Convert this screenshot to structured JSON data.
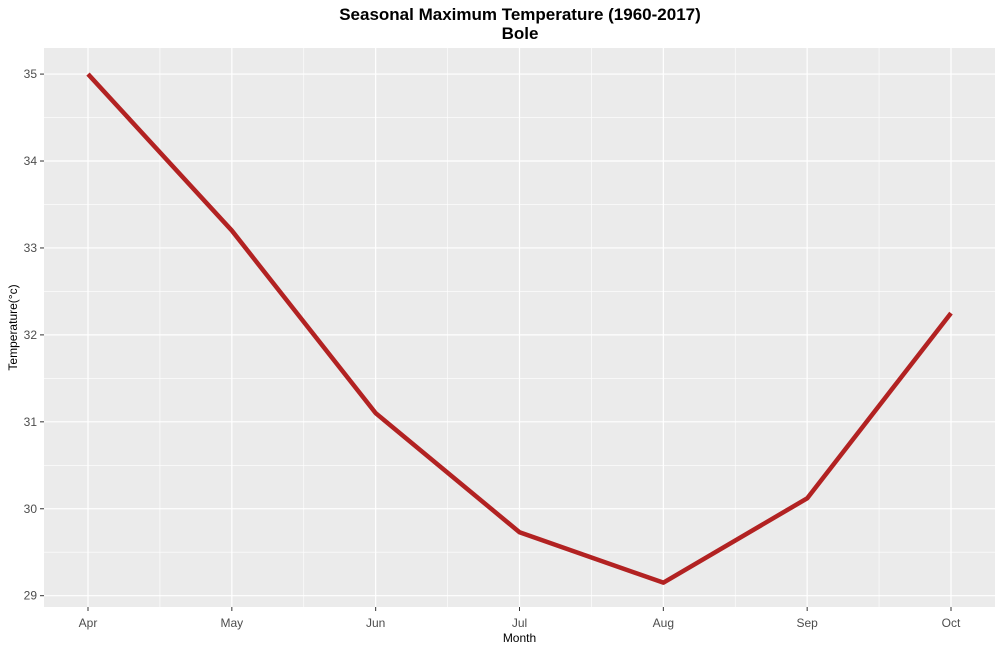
{
  "chart_data": {
    "type": "line",
    "title": "Seasonal Maximum Temperature (1960-2017)",
    "subtitle": "Bole",
    "xlabel": "Month",
    "ylabel": "Temperature(°c)",
    "categories": [
      "Apr",
      "May",
      "Jun",
      "Jul",
      "Aug",
      "Sep",
      "Oct"
    ],
    "series": [
      {
        "values": [
          35.0,
          33.2,
          31.1,
          29.73,
          29.15,
          30.12,
          32.25
        ],
        "color": "#b22222"
      }
    ],
    "ylim": [
      28.87,
      35.3
    ],
    "yticks": [
      29,
      30,
      31,
      32,
      33,
      34,
      35
    ],
    "grid": true,
    "legend": "none",
    "panel_background": "#ebebeb",
    "grid_color": "#ffffff"
  }
}
